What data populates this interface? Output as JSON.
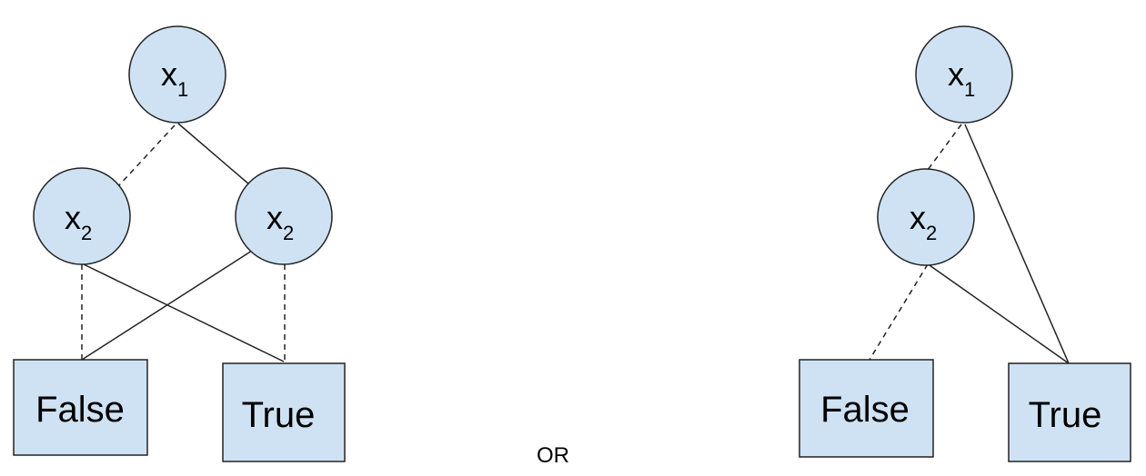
{
  "colors": {
    "node_fill": "#cfe2f3",
    "stroke": "#222222"
  },
  "left_diagram": {
    "root": {
      "var": "x",
      "sub": "1"
    },
    "low_child": {
      "var": "x",
      "sub": "2"
    },
    "high_child": {
      "var": "x",
      "sub": "2"
    },
    "false_leaf": "False",
    "true_leaf": "True"
  },
  "separator": "OR",
  "right_diagram": {
    "root": {
      "var": "x",
      "sub": "1"
    },
    "child": {
      "var": "x",
      "sub": "2"
    },
    "false_leaf": "False",
    "true_leaf": "True"
  }
}
